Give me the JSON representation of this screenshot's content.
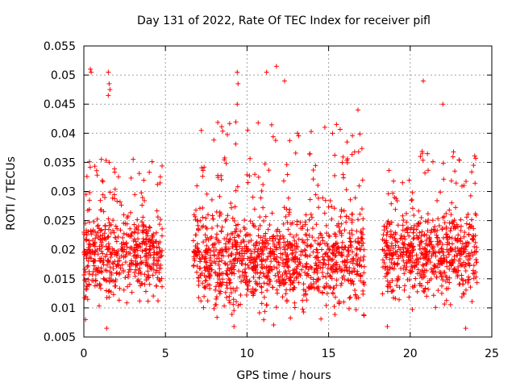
{
  "chart_data": {
    "type": "scatter",
    "title": "Day 131 of 2022, Rate Of TEC Index for receiver pifl",
    "xlabel": "GPS time / hours",
    "ylabel": "ROTI / TECUs",
    "xlim": [
      0,
      25
    ],
    "ylim": [
      0.005,
      0.055
    ],
    "xticks": [
      0,
      5,
      10,
      15,
      20,
      25
    ],
    "yticks": [
      0.005,
      0.01,
      0.015,
      0.02,
      0.025,
      0.03,
      0.035,
      0.04,
      0.045,
      0.05,
      0.055
    ],
    "ytick_labels": [
      "0.005",
      "0.01",
      "0.015",
      "0.02",
      "0.025",
      "0.03",
      "0.035",
      "0.04",
      "0.045",
      "0.05",
      "0.055"
    ],
    "grid": true,
    "marker": "+",
    "point_color": "#ff0000",
    "series": [
      {
        "name": "ROTI",
        "segments": [
          {
            "x_range": [
              0.0,
              4.8
            ],
            "y_range": [
              0.0065,
              0.036
            ],
            "y_center": 0.019
          },
          {
            "x_range": [
              6.7,
              17.2
            ],
            "y_range": [
              0.0068,
              0.042
            ],
            "y_center": 0.018
          },
          {
            "x_range": [
              18.3,
              24.1
            ],
            "y_range": [
              0.0065,
              0.037
            ],
            "y_center": 0.019
          }
        ],
        "highlight_points": [
          {
            "x": 0.4,
            "y": 0.051
          },
          {
            "x": 0.45,
            "y": 0.0505
          },
          {
            "x": 1.5,
            "y": 0.0505
          },
          {
            "x": 1.55,
            "y": 0.0485
          },
          {
            "x": 1.6,
            "y": 0.0475
          },
          {
            "x": 1.5,
            "y": 0.0465
          },
          {
            "x": 9.4,
            "y": 0.0505
          },
          {
            "x": 9.45,
            "y": 0.0485
          },
          {
            "x": 9.4,
            "y": 0.045
          },
          {
            "x": 11.2,
            "y": 0.0505
          },
          {
            "x": 11.8,
            "y": 0.0515
          },
          {
            "x": 12.3,
            "y": 0.049
          },
          {
            "x": 20.8,
            "y": 0.049
          },
          {
            "x": 0.1,
            "y": 0.008
          },
          {
            "x": 1.4,
            "y": 0.0065
          },
          {
            "x": 9.2,
            "y": 0.0068
          },
          {
            "x": 18.6,
            "y": 0.0068
          },
          {
            "x": 23.4,
            "y": 0.0065
          },
          {
            "x": 7.2,
            "y": 0.0405
          },
          {
            "x": 22.0,
            "y": 0.045
          },
          {
            "x": 16.8,
            "y": 0.044
          }
        ]
      }
    ]
  }
}
